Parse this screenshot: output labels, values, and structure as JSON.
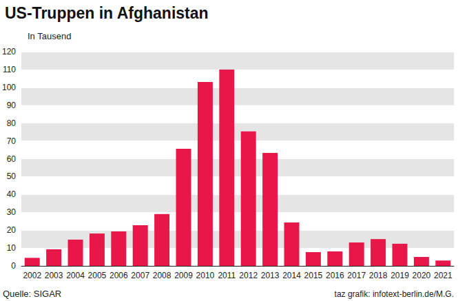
{
  "chart_data": {
    "type": "bar",
    "title": "US-Truppen in Afghanistan",
    "ylabel": "In Tausend",
    "categories": [
      "2002",
      "2003",
      "2004",
      "2005",
      "2006",
      "2007",
      "2008",
      "2009",
      "2010",
      "2011",
      "2012",
      "2013",
      "2014",
      "2015",
      "2016",
      "2017",
      "2018",
      "2019",
      "2020",
      "2021"
    ],
    "values": [
      4.5,
      9.3,
      14.7,
      18.1,
      19.3,
      22.8,
      29,
      65.6,
      103,
      110,
      75.3,
      63.3,
      24.3,
      7.7,
      8.1,
      13.1,
      15,
      12.4,
      5,
      3
    ],
    "color": "#e8174a",
    "ylim": [
      0,
      120
    ],
    "yticks": [
      0,
      10,
      20,
      30,
      40,
      50,
      60,
      70,
      80,
      90,
      100,
      110,
      120
    ],
    "grid": true,
    "annotations": [
      "Quelle: SIGAR",
      "taz grafik: infotext-berlin.de/M.G."
    ]
  }
}
